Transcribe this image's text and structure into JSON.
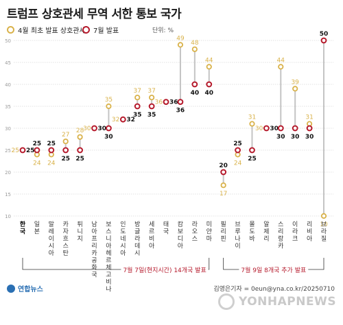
{
  "title": "트럼프 상호관세 무역 서한 통보 국가",
  "legend": [
    {
      "label": "4월 최초 발표 상호관세",
      "color": "#d9b24a"
    },
    {
      "label": "7월 발표",
      "color": "#b5192b"
    }
  ],
  "unit": "단위: %",
  "colors": {
    "april": "#d9b24a",
    "july": "#b5192b",
    "line": "#c4c4c4",
    "grid": "#d8d8d8",
    "groupline": "#333333"
  },
  "groups": [
    {
      "label": "7월 7일(현지시간) 14개국 발표",
      "start": 0,
      "end": 13
    },
    {
      "label": "7월 9일 8개국 추가 발표",
      "start": 14,
      "end": 21
    }
  ],
  "credit": "김영은기자 = 0eun@yna.co.kr/20250710",
  "logo_left": "연합뉴스",
  "watermark": "YONHAPNEWS",
  "chart_data": {
    "type": "scatter",
    "ylim": [
      10,
      50
    ],
    "yticks": [
      10,
      15,
      20,
      25,
      30,
      35,
      40,
      45,
      50
    ],
    "grid": true,
    "categories": [
      "한국",
      "일본",
      "말레이시아",
      "카자흐스탄",
      "튀니지",
      "남아프리카공화국",
      "보스니아헤르체고비나",
      "인도네시아",
      "방글라데시",
      "세르비아",
      "태국",
      "캄보디아",
      "라오스",
      "미얀마",
      "필리핀",
      "브루나이",
      "몰도바",
      "알제리",
      "스리랑카",
      "이라크",
      "리비아",
      "브라질"
    ],
    "series": [
      {
        "name": "4월 최초 발표 상호관세",
        "values": [
          25,
          24,
          24,
          27,
          28,
          30,
          35,
          32,
          37,
          37,
          36,
          49,
          48,
          44,
          17,
          24,
          31,
          30,
          44,
          39,
          31,
          10
        ]
      },
      {
        "name": "7월 발표",
        "values": [
          25,
          25,
          25,
          25,
          25,
          30,
          30,
          32,
          35,
          35,
          36,
          36,
          40,
          40,
          20,
          25,
          25,
          30,
          30,
          30,
          30,
          50
        ]
      }
    ]
  }
}
